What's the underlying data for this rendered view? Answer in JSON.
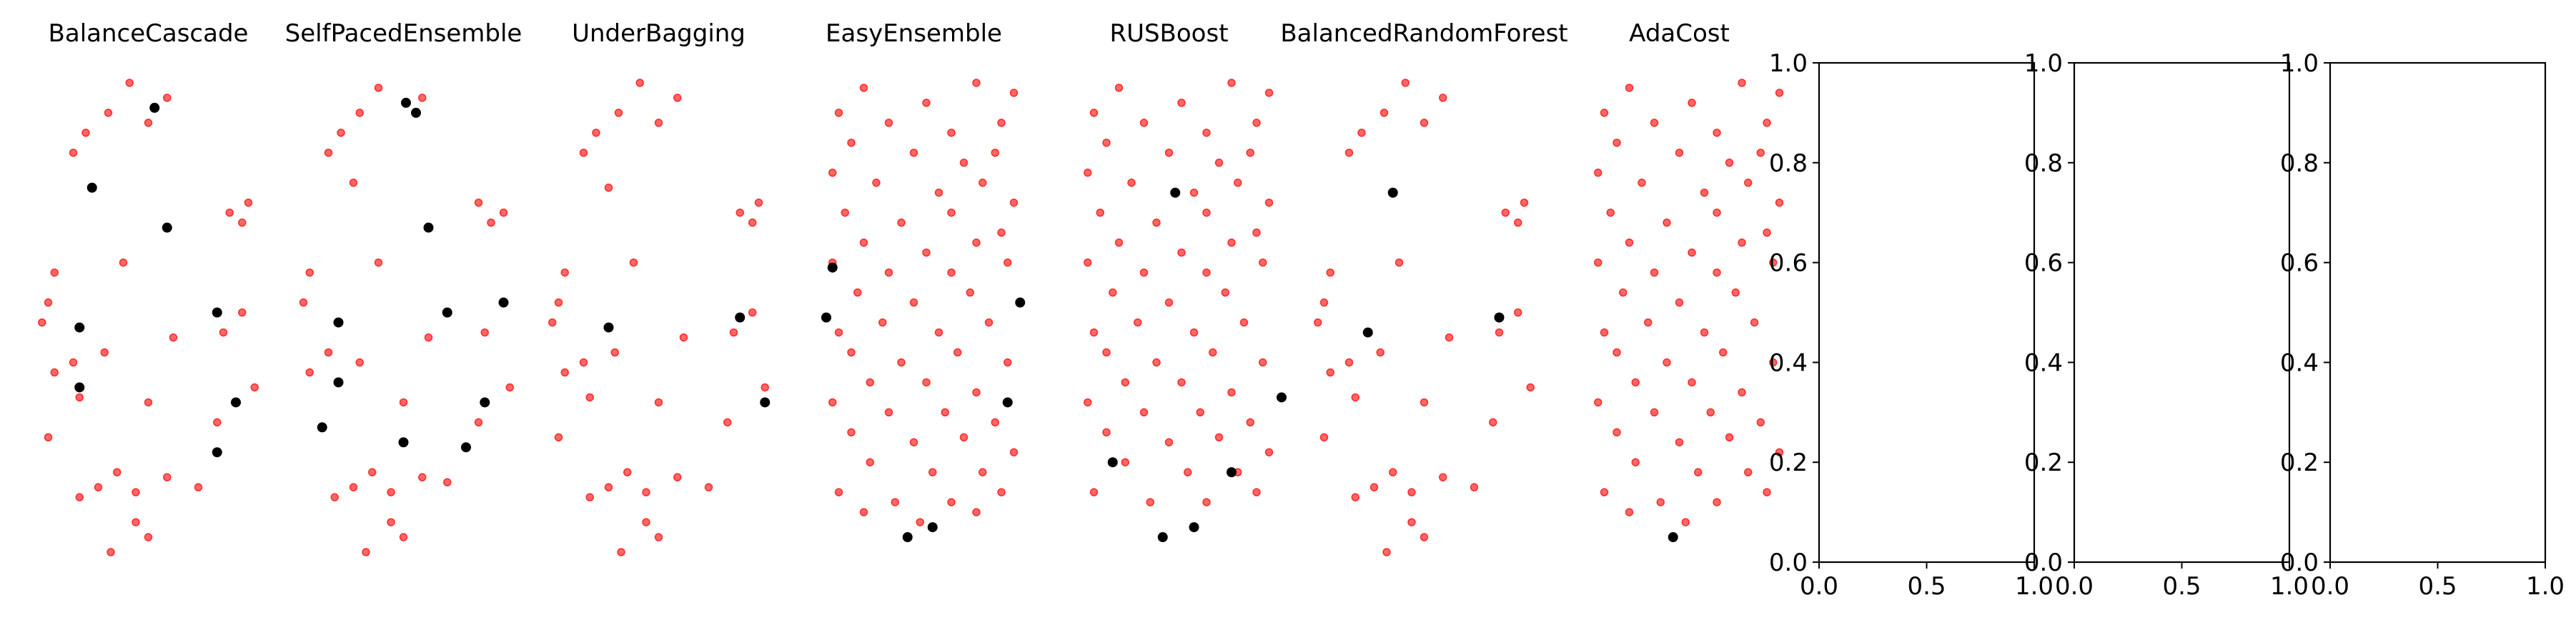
{
  "colors": {
    "minority": "#ff0000",
    "majority": "#000000",
    "axis": "#000000",
    "background": "#ffffff"
  },
  "chart_data": [
    {
      "type": "scatter",
      "title": "BalanceCascade",
      "majority": [
        [
          0.75,
          0.91
        ],
        [
          0.25,
          0.75
        ],
        [
          0.85,
          0.67
        ],
        [
          0.15,
          0.47
        ],
        [
          1.25,
          0.5
        ],
        [
          0.15,
          0.35
        ],
        [
          1.4,
          0.32
        ],
        [
          1.25,
          0.22
        ]
      ],
      "minority": [
        [
          0.55,
          0.96
        ],
        [
          0.38,
          0.9
        ],
        [
          0.2,
          0.86
        ],
        [
          0.1,
          0.82
        ],
        [
          0.85,
          0.93
        ],
        [
          0.7,
          0.88
        ],
        [
          1.5,
          0.72
        ],
        [
          1.45,
          0.68
        ],
        [
          1.35,
          0.7
        ],
        [
          0.5,
          0.6
        ],
        [
          -0.05,
          0.58
        ],
        [
          -0.1,
          0.52
        ],
        [
          -0.15,
          0.48
        ],
        [
          0.1,
          0.4
        ],
        [
          0.35,
          0.42
        ],
        [
          0.9,
          0.45
        ],
        [
          1.3,
          0.46
        ],
        [
          1.45,
          0.5
        ],
        [
          -0.05,
          0.38
        ],
        [
          0.15,
          0.33
        ],
        [
          1.55,
          0.35
        ],
        [
          0.7,
          0.32
        ],
        [
          1.25,
          0.28
        ],
        [
          -0.1,
          0.25
        ],
        [
          0.45,
          0.18
        ],
        [
          0.3,
          0.15
        ],
        [
          0.6,
          0.14
        ],
        [
          0.15,
          0.13
        ],
        [
          0.85,
          0.17
        ],
        [
          1.1,
          0.15
        ],
        [
          0.6,
          0.08
        ],
        [
          0.7,
          0.05
        ],
        [
          0.4,
          0.02
        ]
      ]
    },
    {
      "type": "scatter",
      "title": "SelfPacedEnsemble",
      "majority": [
        [
          0.72,
          0.92
        ],
        [
          0.8,
          0.9
        ],
        [
          0.9,
          0.67
        ],
        [
          0.18,
          0.48
        ],
        [
          1.05,
          0.5
        ],
        [
          0.18,
          0.36
        ],
        [
          1.35,
          0.32
        ],
        [
          0.05,
          0.27
        ],
        [
          0.7,
          0.24
        ],
        [
          1.2,
          0.23
        ],
        [
          1.5,
          0.52
        ]
      ],
      "minority": [
        [
          0.5,
          0.95
        ],
        [
          0.35,
          0.9
        ],
        [
          0.2,
          0.86
        ],
        [
          0.1,
          0.82
        ],
        [
          0.85,
          0.93
        ],
        [
          0.3,
          0.76
        ],
        [
          1.3,
          0.72
        ],
        [
          1.4,
          0.68
        ],
        [
          1.5,
          0.7
        ],
        [
          0.5,
          0.6
        ],
        [
          -0.05,
          0.58
        ],
        [
          -0.1,
          0.52
        ],
        [
          0.1,
          0.42
        ],
        [
          0.35,
          0.4
        ],
        [
          0.9,
          0.45
        ],
        [
          1.35,
          0.46
        ],
        [
          -0.05,
          0.38
        ],
        [
          1.55,
          0.35
        ],
        [
          0.7,
          0.32
        ],
        [
          1.3,
          0.28
        ],
        [
          0.45,
          0.18
        ],
        [
          0.3,
          0.15
        ],
        [
          0.6,
          0.14
        ],
        [
          0.85,
          0.17
        ],
        [
          0.6,
          0.08
        ],
        [
          0.7,
          0.05
        ],
        [
          0.4,
          0.02
        ],
        [
          1.05,
          0.16
        ],
        [
          0.15,
          0.13
        ]
      ]
    },
    {
      "type": "scatter",
      "title": "UnderBagging",
      "majority": [
        [
          0.3,
          0.47
        ],
        [
          1.35,
          0.49
        ],
        [
          1.55,
          0.32
        ]
      ],
      "minority": [
        [
          0.55,
          0.96
        ],
        [
          0.38,
          0.9
        ],
        [
          0.2,
          0.86
        ],
        [
          0.1,
          0.82
        ],
        [
          0.85,
          0.93
        ],
        [
          0.7,
          0.88
        ],
        [
          0.3,
          0.75
        ],
        [
          1.5,
          0.72
        ],
        [
          1.45,
          0.68
        ],
        [
          1.35,
          0.7
        ],
        [
          0.5,
          0.6
        ],
        [
          -0.05,
          0.58
        ],
        [
          -0.1,
          0.52
        ],
        [
          -0.15,
          0.48
        ],
        [
          0.1,
          0.4
        ],
        [
          0.35,
          0.42
        ],
        [
          0.9,
          0.45
        ],
        [
          1.3,
          0.46
        ],
        [
          1.45,
          0.5
        ],
        [
          -0.05,
          0.38
        ],
        [
          0.15,
          0.33
        ],
        [
          1.55,
          0.35
        ],
        [
          0.7,
          0.32
        ],
        [
          1.25,
          0.28
        ],
        [
          -0.1,
          0.25
        ],
        [
          0.45,
          0.18
        ],
        [
          0.3,
          0.15
        ],
        [
          0.6,
          0.14
        ],
        [
          0.15,
          0.13
        ],
        [
          0.85,
          0.17
        ],
        [
          1.1,
          0.15
        ],
        [
          0.6,
          0.08
        ],
        [
          0.7,
          0.05
        ],
        [
          0.4,
          0.02
        ]
      ]
    },
    {
      "type": "scatter",
      "title": "EasyEnsemble",
      "majority": [
        [
          0.05,
          0.59
        ],
        [
          0.0,
          0.49
        ],
        [
          1.55,
          0.52
        ],
        [
          1.45,
          0.32
        ],
        [
          0.85,
          0.07
        ],
        [
          0.65,
          0.05
        ]
      ],
      "minority": [
        [
          0.3,
          0.95
        ],
        [
          0.8,
          0.92
        ],
        [
          1.2,
          0.96
        ],
        [
          1.5,
          0.94
        ],
        [
          0.1,
          0.9
        ],
        [
          0.5,
          0.88
        ],
        [
          1.0,
          0.86
        ],
        [
          1.4,
          0.88
        ],
        [
          0.2,
          0.84
        ],
        [
          0.7,
          0.82
        ],
        [
          1.1,
          0.8
        ],
        [
          1.35,
          0.82
        ],
        [
          0.05,
          0.78
        ],
        [
          0.4,
          0.76
        ],
        [
          0.9,
          0.74
        ],
        [
          1.25,
          0.76
        ],
        [
          1.5,
          0.72
        ],
        [
          0.15,
          0.7
        ],
        [
          0.6,
          0.68
        ],
        [
          1.0,
          0.7
        ],
        [
          1.4,
          0.66
        ],
        [
          0.3,
          0.64
        ],
        [
          0.8,
          0.62
        ],
        [
          1.2,
          0.64
        ],
        [
          0.05,
          0.6
        ],
        [
          0.5,
          0.58
        ],
        [
          1.0,
          0.58
        ],
        [
          1.45,
          0.6
        ],
        [
          0.25,
          0.54
        ],
        [
          0.7,
          0.52
        ],
        [
          1.15,
          0.54
        ],
        [
          0.1,
          0.46
        ],
        [
          0.45,
          0.48
        ],
        [
          0.9,
          0.46
        ],
        [
          1.3,
          0.48
        ],
        [
          0.2,
          0.42
        ],
        [
          0.6,
          0.4
        ],
        [
          1.05,
          0.42
        ],
        [
          1.45,
          0.4
        ],
        [
          0.35,
          0.36
        ],
        [
          0.8,
          0.36
        ],
        [
          1.2,
          0.34
        ],
        [
          0.05,
          0.32
        ],
        [
          0.5,
          0.3
        ],
        [
          0.95,
          0.3
        ],
        [
          1.35,
          0.28
        ],
        [
          0.2,
          0.26
        ],
        [
          0.7,
          0.24
        ],
        [
          1.1,
          0.25
        ],
        [
          1.5,
          0.22
        ],
        [
          0.35,
          0.2
        ],
        [
          0.85,
          0.18
        ],
        [
          1.25,
          0.18
        ],
        [
          0.1,
          0.14
        ],
        [
          0.55,
          0.12
        ],
        [
          1.0,
          0.12
        ],
        [
          1.4,
          0.14
        ],
        [
          0.3,
          0.1
        ],
        [
          0.75,
          0.08
        ],
        [
          1.2,
          0.1
        ]
      ]
    },
    {
      "type": "scatter",
      "title": "RUSBoost",
      "majority": [
        [
          0.75,
          0.74
        ],
        [
          1.6,
          0.33
        ],
        [
          0.25,
          0.2
        ],
        [
          1.2,
          0.18
        ],
        [
          0.9,
          0.07
        ],
        [
          0.65,
          0.05
        ]
      ],
      "minority": [
        [
          0.3,
          0.95
        ],
        [
          0.8,
          0.92
        ],
        [
          1.2,
          0.96
        ],
        [
          1.5,
          0.94
        ],
        [
          0.1,
          0.9
        ],
        [
          0.5,
          0.88
        ],
        [
          1.0,
          0.86
        ],
        [
          1.4,
          0.88
        ],
        [
          0.2,
          0.84
        ],
        [
          0.7,
          0.82
        ],
        [
          1.1,
          0.8
        ],
        [
          1.35,
          0.82
        ],
        [
          0.05,
          0.78
        ],
        [
          0.4,
          0.76
        ],
        [
          0.9,
          0.74
        ],
        [
          1.25,
          0.76
        ],
        [
          1.5,
          0.72
        ],
        [
          0.15,
          0.7
        ],
        [
          0.6,
          0.68
        ],
        [
          1.0,
          0.7
        ],
        [
          1.4,
          0.66
        ],
        [
          0.3,
          0.64
        ],
        [
          0.8,
          0.62
        ],
        [
          1.2,
          0.64
        ],
        [
          0.05,
          0.6
        ],
        [
          0.5,
          0.58
        ],
        [
          1.0,
          0.58
        ],
        [
          1.45,
          0.6
        ],
        [
          0.25,
          0.54
        ],
        [
          0.7,
          0.52
        ],
        [
          1.15,
          0.54
        ],
        [
          0.1,
          0.46
        ],
        [
          0.45,
          0.48
        ],
        [
          0.9,
          0.46
        ],
        [
          1.3,
          0.48
        ],
        [
          0.2,
          0.42
        ],
        [
          0.6,
          0.4
        ],
        [
          1.05,
          0.42
        ],
        [
          1.45,
          0.4
        ],
        [
          0.35,
          0.36
        ],
        [
          0.8,
          0.36
        ],
        [
          1.2,
          0.34
        ],
        [
          0.05,
          0.32
        ],
        [
          0.5,
          0.3
        ],
        [
          0.95,
          0.3
        ],
        [
          1.35,
          0.28
        ],
        [
          0.2,
          0.26
        ],
        [
          0.7,
          0.24
        ],
        [
          1.1,
          0.25
        ],
        [
          1.5,
          0.22
        ],
        [
          0.35,
          0.2
        ],
        [
          0.85,
          0.18
        ],
        [
          1.25,
          0.18
        ],
        [
          0.1,
          0.14
        ],
        [
          0.55,
          0.12
        ],
        [
          1.0,
          0.12
        ],
        [
          1.4,
          0.14
        ]
      ]
    },
    {
      "type": "scatter",
      "title": "BalancedRandomForest",
      "majority": [
        [
          0.45,
          0.74
        ],
        [
          0.25,
          0.46
        ],
        [
          1.3,
          0.49
        ]
      ],
      "minority": [
        [
          0.55,
          0.96
        ],
        [
          0.38,
          0.9
        ],
        [
          0.2,
          0.86
        ],
        [
          0.1,
          0.82
        ],
        [
          0.85,
          0.93
        ],
        [
          0.7,
          0.88
        ],
        [
          1.5,
          0.72
        ],
        [
          1.45,
          0.68
        ],
        [
          1.35,
          0.7
        ],
        [
          0.5,
          0.6
        ],
        [
          -0.05,
          0.58
        ],
        [
          -0.1,
          0.52
        ],
        [
          -0.15,
          0.48
        ],
        [
          0.1,
          0.4
        ],
        [
          0.35,
          0.42
        ],
        [
          0.9,
          0.45
        ],
        [
          1.3,
          0.46
        ],
        [
          1.45,
          0.5
        ],
        [
          -0.05,
          0.38
        ],
        [
          0.15,
          0.33
        ],
        [
          1.55,
          0.35
        ],
        [
          0.7,
          0.32
        ],
        [
          1.25,
          0.28
        ],
        [
          -0.1,
          0.25
        ],
        [
          0.45,
          0.18
        ],
        [
          0.3,
          0.15
        ],
        [
          0.6,
          0.14
        ],
        [
          0.15,
          0.13
        ],
        [
          0.85,
          0.17
        ],
        [
          1.1,
          0.15
        ],
        [
          0.6,
          0.08
        ],
        [
          0.7,
          0.05
        ],
        [
          0.4,
          0.02
        ]
      ]
    },
    {
      "type": "scatter",
      "title": "AdaCost",
      "majority": [
        [
          0.65,
          0.05
        ]
      ],
      "minority": [
        [
          0.3,
          0.95
        ],
        [
          0.8,
          0.92
        ],
        [
          1.2,
          0.96
        ],
        [
          1.5,
          0.94
        ],
        [
          0.1,
          0.9
        ],
        [
          0.5,
          0.88
        ],
        [
          1.0,
          0.86
        ],
        [
          1.4,
          0.88
        ],
        [
          0.2,
          0.84
        ],
        [
          0.7,
          0.82
        ],
        [
          1.1,
          0.8
        ],
        [
          1.35,
          0.82
        ],
        [
          0.05,
          0.78
        ],
        [
          0.4,
          0.76
        ],
        [
          0.9,
          0.74
        ],
        [
          1.25,
          0.76
        ],
        [
          1.5,
          0.72
        ],
        [
          0.15,
          0.7
        ],
        [
          0.6,
          0.68
        ],
        [
          1.0,
          0.7
        ],
        [
          1.4,
          0.66
        ],
        [
          0.3,
          0.64
        ],
        [
          0.8,
          0.62
        ],
        [
          1.2,
          0.64
        ],
        [
          0.05,
          0.6
        ],
        [
          0.5,
          0.58
        ],
        [
          1.0,
          0.58
        ],
        [
          1.45,
          0.6
        ],
        [
          0.25,
          0.54
        ],
        [
          0.7,
          0.52
        ],
        [
          1.15,
          0.54
        ],
        [
          0.1,
          0.46
        ],
        [
          0.45,
          0.48
        ],
        [
          0.9,
          0.46
        ],
        [
          1.3,
          0.48
        ],
        [
          0.2,
          0.42
        ],
        [
          0.6,
          0.4
        ],
        [
          1.05,
          0.42
        ],
        [
          1.45,
          0.4
        ],
        [
          0.35,
          0.36
        ],
        [
          0.8,
          0.36
        ],
        [
          1.2,
          0.34
        ],
        [
          0.05,
          0.32
        ],
        [
          0.5,
          0.3
        ],
        [
          0.95,
          0.3
        ],
        [
          1.35,
          0.28
        ],
        [
          0.2,
          0.26
        ],
        [
          0.7,
          0.24
        ],
        [
          1.1,
          0.25
        ],
        [
          1.5,
          0.22
        ],
        [
          0.35,
          0.2
        ],
        [
          0.85,
          0.18
        ],
        [
          1.25,
          0.18
        ],
        [
          0.1,
          0.14
        ],
        [
          0.55,
          0.12
        ],
        [
          1.0,
          0.12
        ],
        [
          1.4,
          0.14
        ],
        [
          0.3,
          0.1
        ],
        [
          0.75,
          0.08
        ]
      ]
    },
    {
      "type": "scatter",
      "title": "",
      "xlim": [
        0.0,
        1.0
      ],
      "ylim": [
        0.0,
        1.0
      ],
      "xticks": [
        "0.0",
        "0.5",
        "1.0"
      ],
      "yticks": [
        "0.0",
        "0.2",
        "0.4",
        "0.6",
        "0.8",
        "1.0"
      ],
      "majority": [],
      "minority": []
    },
    {
      "type": "scatter",
      "title": "",
      "xlim": [
        0.0,
        1.0
      ],
      "ylim": [
        0.0,
        1.0
      ],
      "xticks": [
        "0.0",
        "0.5",
        "1.0"
      ],
      "yticks": [
        "0.0",
        "0.2",
        "0.4",
        "0.6",
        "0.8",
        "1.0"
      ],
      "majority": [],
      "minority": []
    },
    {
      "type": "scatter",
      "title": "",
      "xlim": [
        0.0,
        1.0
      ],
      "ylim": [
        0.0,
        1.0
      ],
      "xticks": [
        "0.0",
        "0.5",
        "1.0"
      ],
      "yticks": [
        "0.0",
        "0.2",
        "0.4",
        "0.6",
        "0.8",
        "1.0"
      ],
      "majority": [],
      "minority": []
    }
  ]
}
